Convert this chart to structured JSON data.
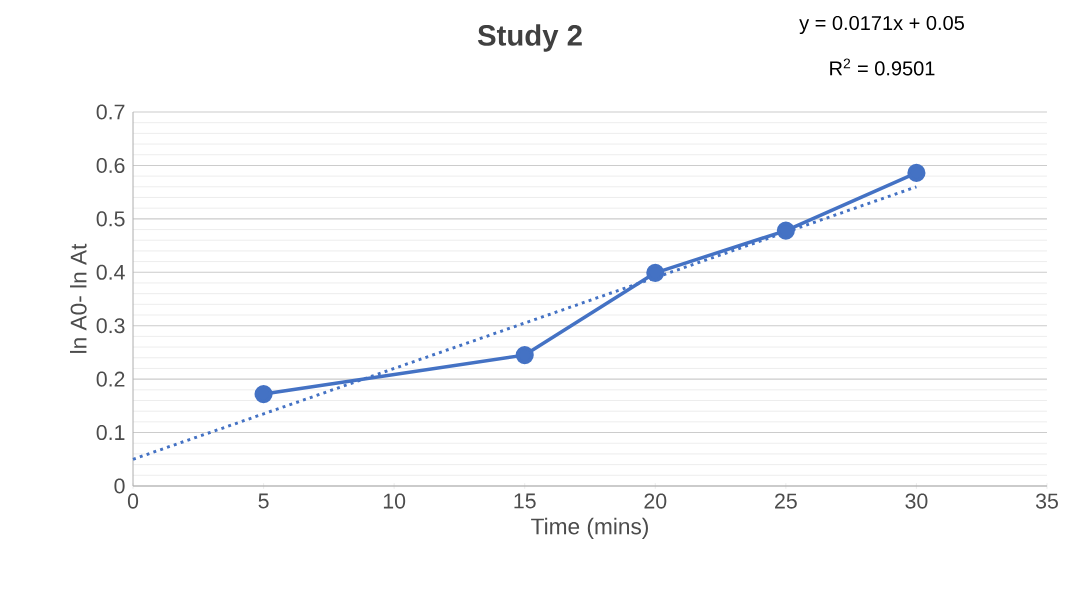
{
  "chart_data": {
    "type": "line",
    "title": "Study 2",
    "xlabel": "Time (mins)",
    "ylabel": "ln A0- ln At",
    "x": [
      5,
      15,
      20,
      25,
      30
    ],
    "series": [
      {
        "color": "#4472c4",
        "values": [
          0.172,
          0.245,
          0.399,
          0.478,
          0.586
        ],
        "marker": "circle",
        "line_style": "solid"
      },
      {
        "type": "line",
        "color": "#4472c4",
        "x": [
          0,
          30
        ],
        "values": [
          0.05,
          0.56
        ],
        "marker": "none",
        "line_style": "dotted"
      }
    ],
    "xlim": [
      0,
      35
    ],
    "ylim": [
      0,
      0.7
    ],
    "xticks": [
      0,
      5,
      10,
      15,
      20,
      25,
      30,
      35
    ],
    "yticks": [
      0,
      0.1,
      0.2,
      0.3,
      0.4,
      0.5,
      0.6,
      0.7
    ],
    "grid": "y",
    "annotations": [
      "y = 0.0171x + 0.05",
      "R$^{2}$ = 0.9501"
    ]
  }
}
